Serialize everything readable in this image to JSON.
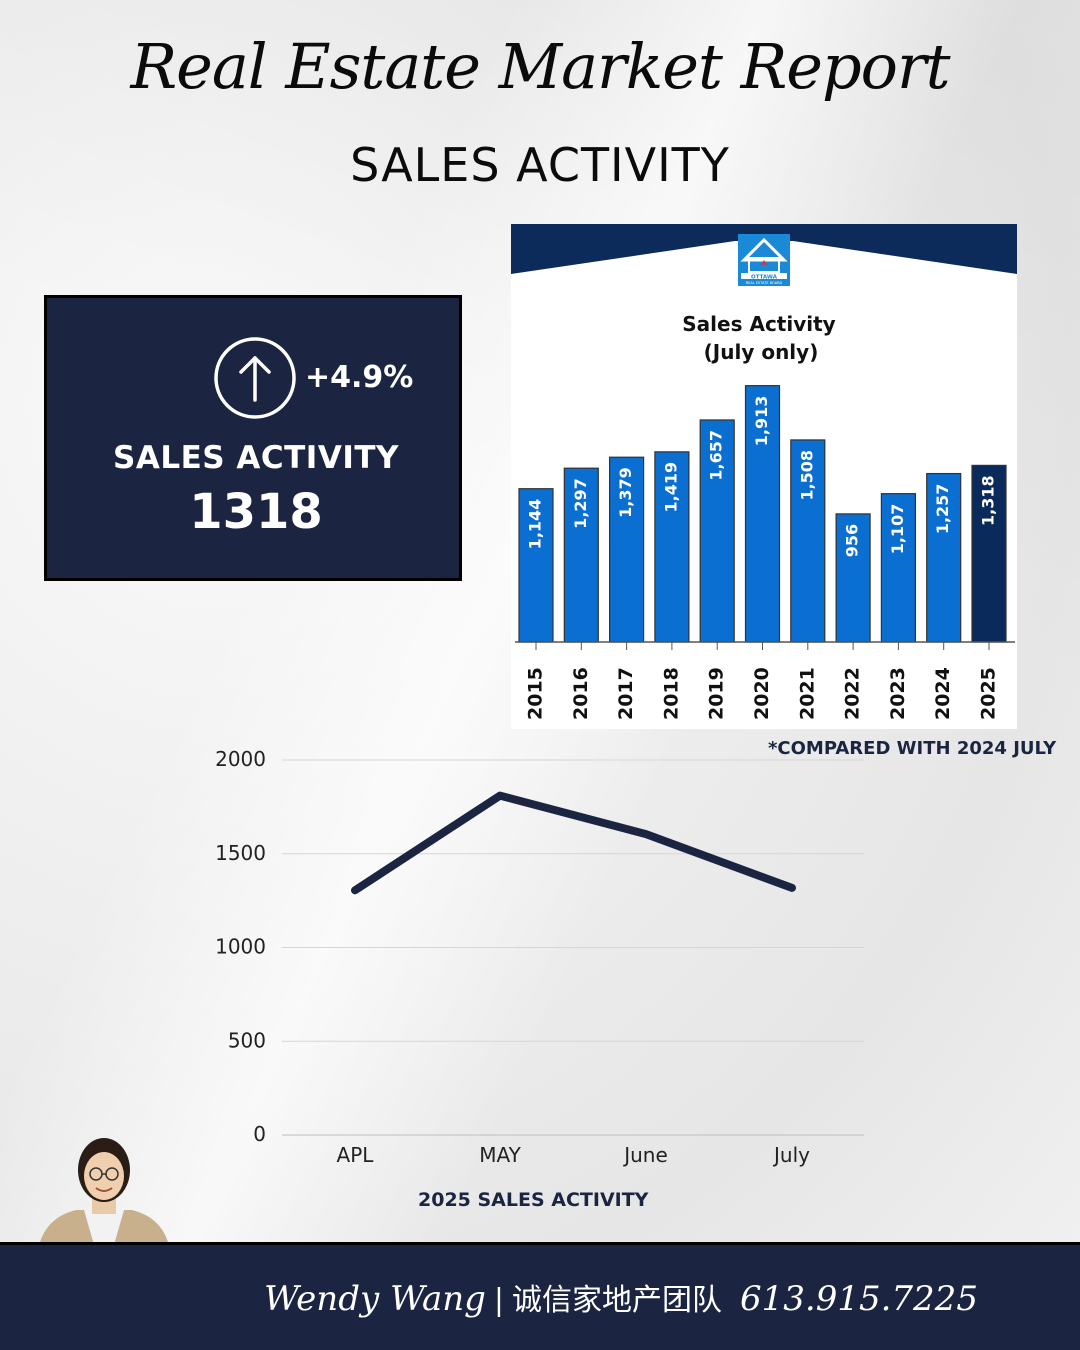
{
  "header": {
    "title": "Real Estate Market Report",
    "subtitle": "SALES ACTIVITY"
  },
  "kpi": {
    "change": "+4.9%",
    "label": "SALES ACTIVITY",
    "value": "1318",
    "arrow_icon": "arrow-up-circle-icon"
  },
  "compare_note": "*COMPARED WITH 2024 JULY",
  "logo": {
    "line1": "OTTAWA",
    "line2": "REAL ESTATE BOARD"
  },
  "chart_data": [
    {
      "type": "bar",
      "title": "Sales Activity",
      "subtitle": "(July only)",
      "categories": [
        "2015",
        "2016",
        "2017",
        "2018",
        "2019",
        "2020",
        "2021",
        "2022",
        "2023",
        "2024",
        "2025"
      ],
      "values": [
        1144,
        1297,
        1379,
        1419,
        1657,
        1913,
        1508,
        956,
        1107,
        1257,
        1318
      ],
      "labels": [
        "1,144",
        "1,297",
        "1,379",
        "1,419",
        "1,657",
        "1,913",
        "1,508",
        "956",
        "1,107",
        "1,257",
        "1,318"
      ],
      "highlight_index": 10,
      "colors": {
        "bar": "#0a6fd1",
        "highlight": "#0a2a5c",
        "header": "#0c2a5a"
      },
      "ylim": [
        0,
        2000
      ]
    },
    {
      "type": "line",
      "title": "2025 SALES ACTIVITY",
      "categories": [
        "APL",
        "MAY",
        "June",
        "July"
      ],
      "values": [
        1305,
        1810,
        1605,
        1318
      ],
      "yticks": [
        "0",
        "500",
        "1000",
        "1500",
        "2000"
      ],
      "ylim": [
        0,
        2000
      ],
      "colors": {
        "line": "#1b2541",
        "grid": "#d6d6d6"
      }
    }
  ],
  "footer": {
    "name": "Wendy Wang",
    "separator": "|",
    "team": "诚信家地产团队",
    "phone": "613.915.7225"
  }
}
